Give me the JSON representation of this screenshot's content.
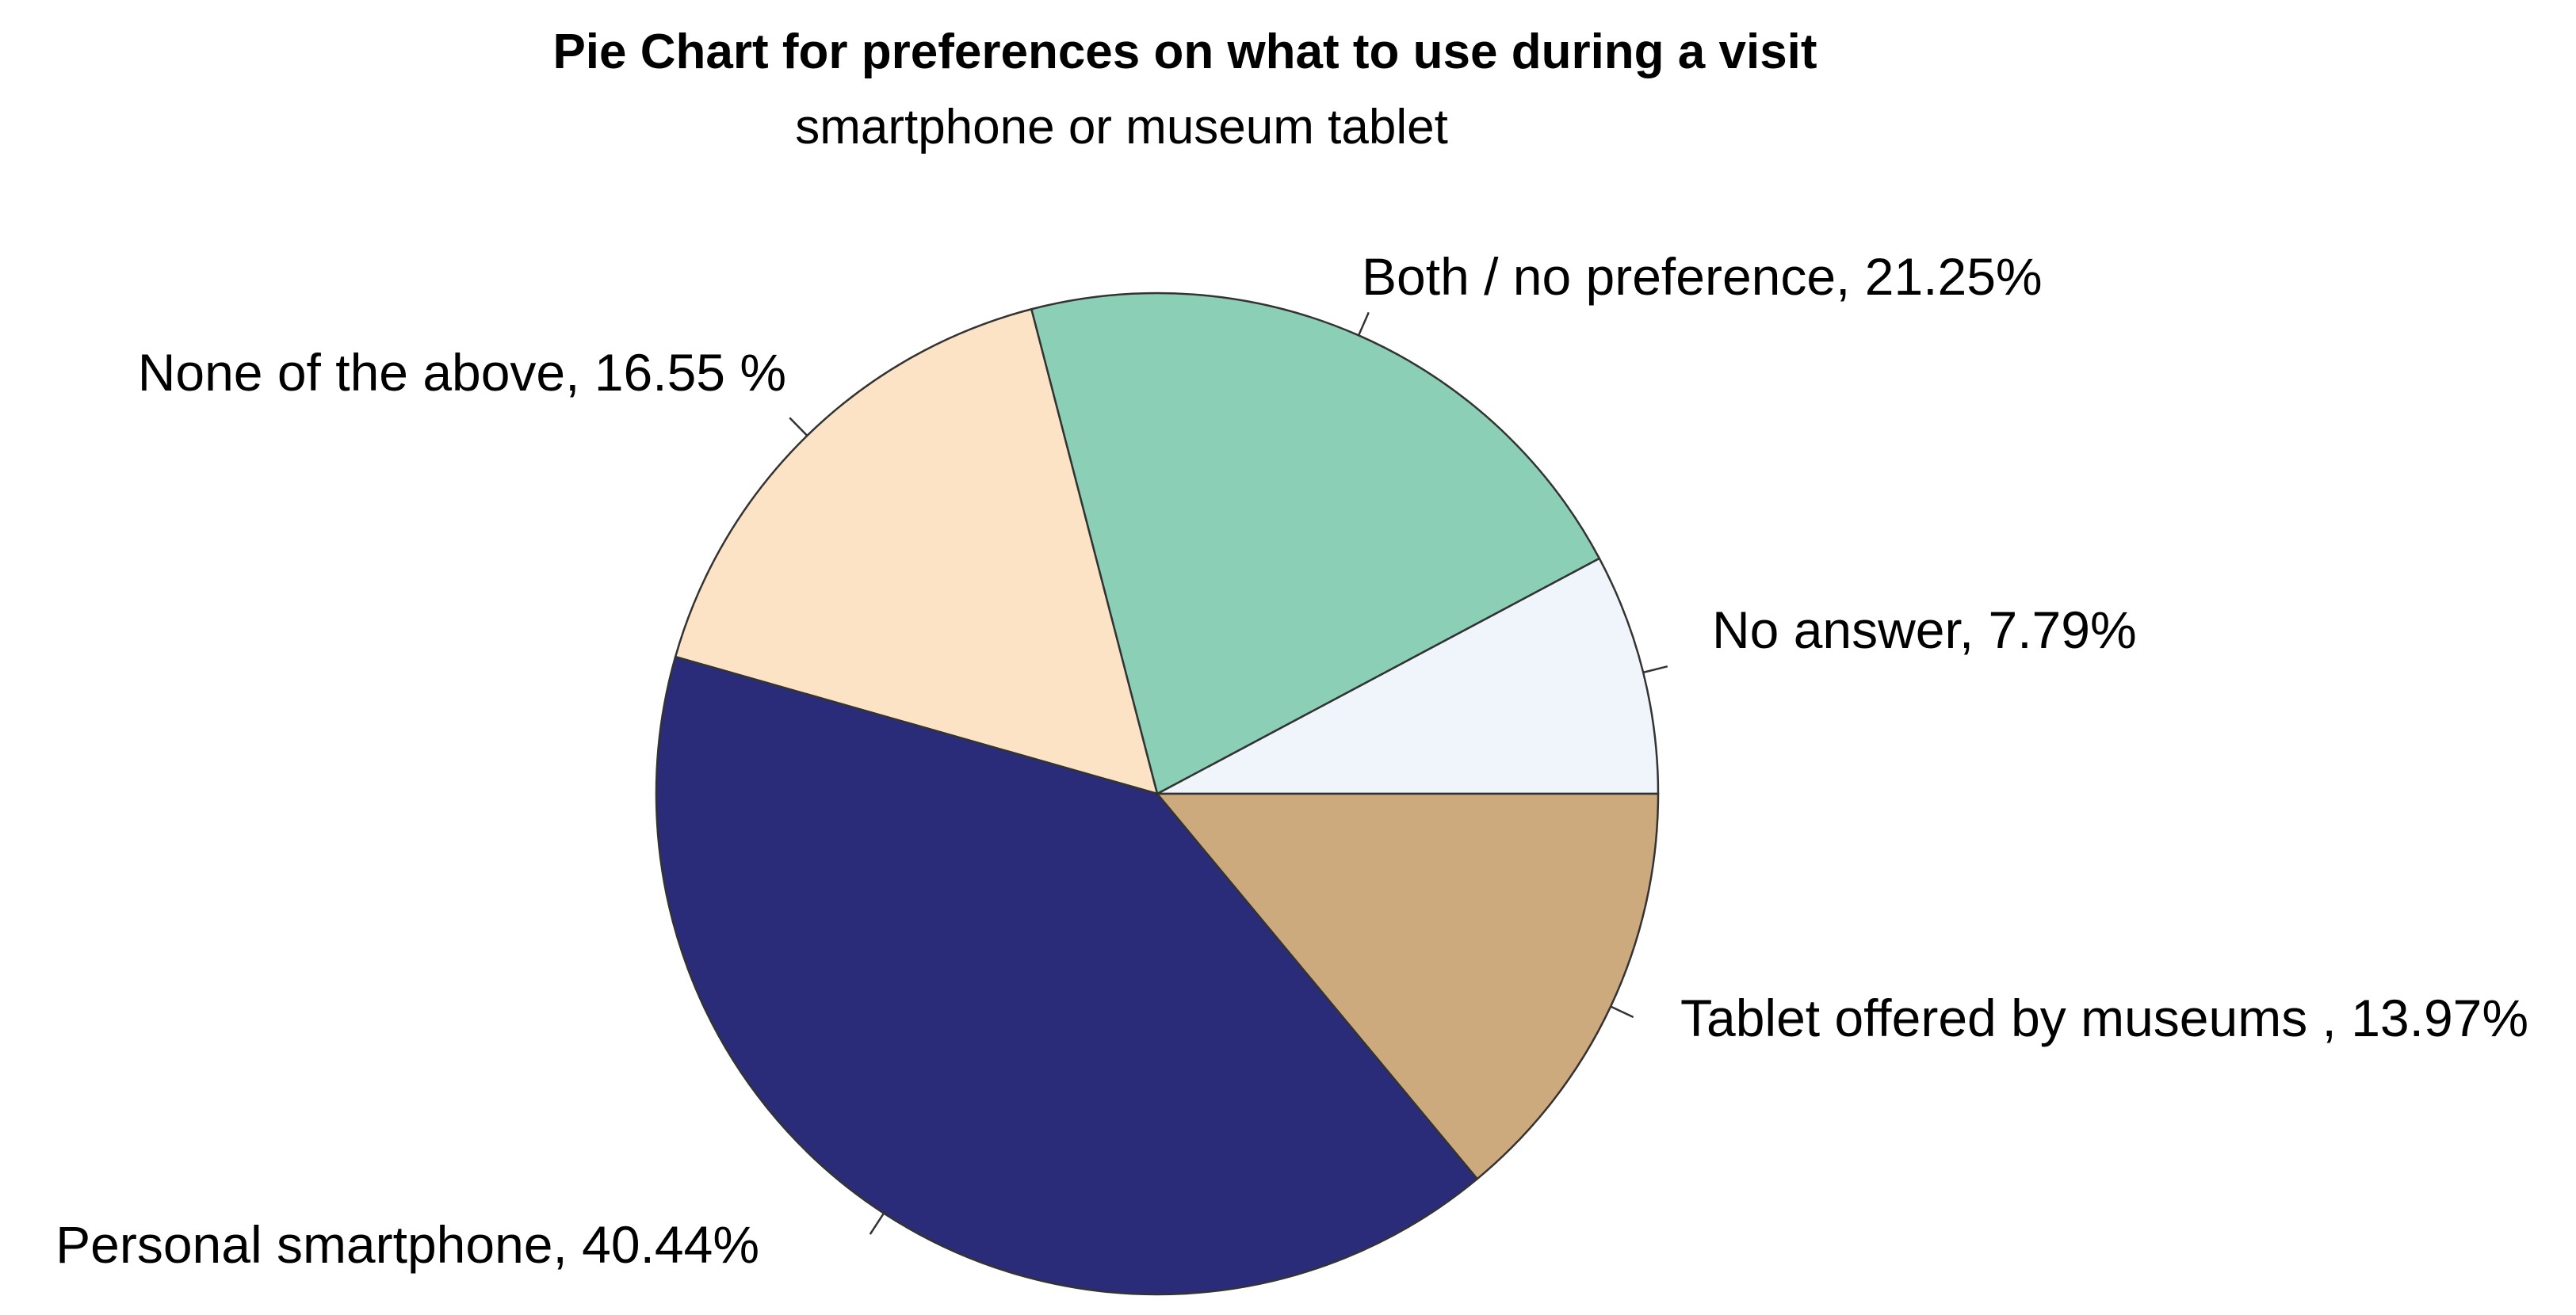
{
  "chart_data": {
    "type": "pie",
    "title": "Pie Chart for preferences on what to use during a visit",
    "subtitle": "smartphone or museum tablet",
    "unit": "%",
    "slices": [
      {
        "label": "No answer, 7.79%",
        "value": 7.79,
        "color": "#F0F5FB"
      },
      {
        "label": "Both / no preference, 21.25%",
        "value": 21.25,
        "color": "#8CCFB7"
      },
      {
        "label": "None of the above, 16.55 %",
        "value": 16.55,
        "color": "#FDE3C5"
      },
      {
        "label": "Personal smartphone, 40.44%",
        "value": 40.44,
        "color": "#2A2C79"
      },
      {
        "label": "Tablet offered by museums , 13.97%",
        "value": 13.97,
        "color": "#CDA97E"
      }
    ],
    "start_angle_deg": 0,
    "direction": "counterclockwise",
    "legend": "none"
  }
}
